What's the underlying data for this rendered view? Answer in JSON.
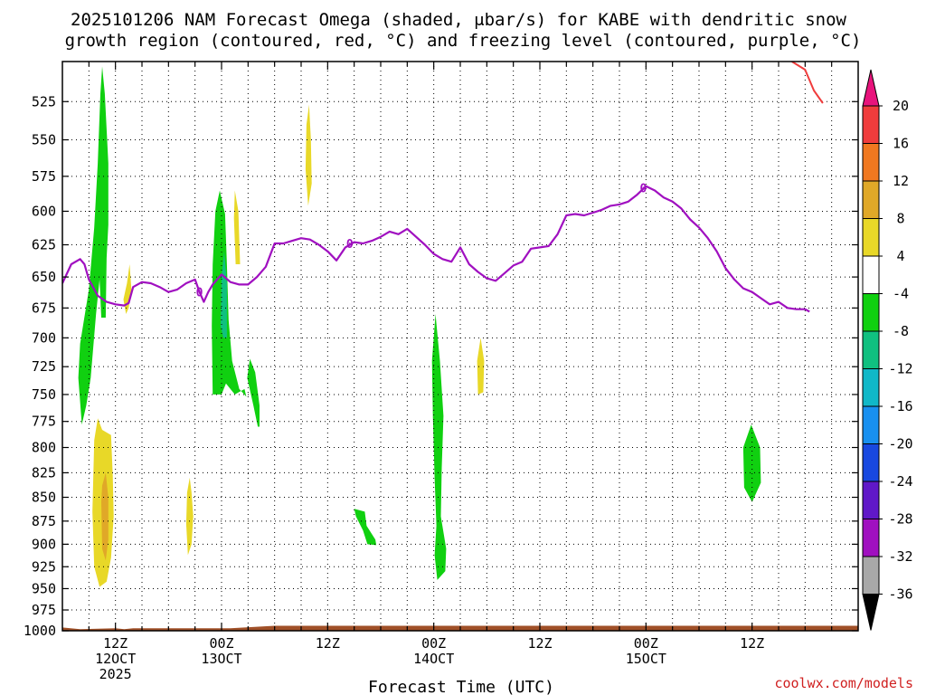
{
  "chart_data": {
    "type": "heatmap",
    "title_lines": [
      "2025101206 NAM Forecast Omega (shaded, μbar/s) for KABE with dendritic snow",
      "growth region (contoured, red, °C) and freezing level (contoured, purple, °C)"
    ],
    "xlabel": "Forecast Time (UTC)",
    "credit": "coolwx.com/models",
    "x_range_hours": [
      -6,
      84
    ],
    "y_range_hpa": [
      1000,
      500
    ],
    "y_scale": "log",
    "grid": true,
    "y_ticks": [
      525,
      550,
      575,
      600,
      625,
      650,
      675,
      700,
      725,
      750,
      775,
      800,
      825,
      850,
      875,
      900,
      925,
      950,
      975,
      1000
    ],
    "x_ticks": [
      {
        "hour": 0,
        "lines": [
          "12Z",
          "12OCT",
          "2025"
        ]
      },
      {
        "hour": 12,
        "lines": [
          "00Z",
          "13OCT"
        ]
      },
      {
        "hour": 24,
        "lines": [
          "12Z"
        ]
      },
      {
        "hour": 36,
        "lines": [
          "00Z",
          "14OCT"
        ]
      },
      {
        "hour": 48,
        "lines": [
          "12Z"
        ]
      },
      {
        "hour": 60,
        "lines": [
          "00Z",
          "15OCT"
        ]
      },
      {
        "hour": 72,
        "lines": [
          "12Z"
        ]
      }
    ],
    "colorbar": {
      "labels": [
        "20",
        "16",
        "12",
        "8",
        "4",
        "-4",
        "-8",
        "-12",
        "-16",
        "-20",
        "-24",
        "-28",
        "-32",
        "-36"
      ],
      "colors": [
        "#e8137c",
        "#f03c3c",
        "#f07820",
        "#e0a828",
        "#e8d828",
        "#ffffff",
        "#10d010",
        "#10c080",
        "#10b8c8",
        "#1890f0",
        "#1848e0",
        "#6018c8",
        "#a010c0",
        "#a8a8a8",
        "#000000"
      ]
    },
    "freezing_level": {
      "color": "#a010c0",
      "label": "0",
      "points": [
        [
          -6,
          655
        ],
        [
          -5,
          640
        ],
        [
          -4,
          636
        ],
        [
          -3.5,
          640
        ],
        [
          -3,
          652
        ],
        [
          -2,
          665
        ],
        [
          -1,
          670
        ],
        [
          0,
          672
        ],
        [
          1,
          673
        ],
        [
          1.5,
          671
        ],
        [
          2,
          658
        ],
        [
          3,
          654
        ],
        [
          4,
          655
        ],
        [
          5,
          658
        ],
        [
          6,
          662
        ],
        [
          7,
          660
        ],
        [
          8,
          655
        ],
        [
          9,
          652
        ],
        [
          9.5,
          662
        ],
        [
          10,
          670
        ],
        [
          10.5,
          662
        ],
        [
          11,
          656
        ],
        [
          12,
          648
        ],
        [
          12.5,
          651
        ],
        [
          13,
          654
        ],
        [
          14,
          656
        ],
        [
          15,
          656
        ],
        [
          16,
          650
        ],
        [
          17,
          642
        ],
        [
          18,
          624
        ],
        [
          19,
          624
        ],
        [
          20,
          622
        ],
        [
          21,
          620
        ],
        [
          22,
          621
        ],
        [
          23,
          625
        ],
        [
          24,
          630
        ],
        [
          25,
          637
        ],
        [
          26,
          627
        ],
        [
          27,
          623
        ],
        [
          28,
          624
        ],
        [
          29,
          622
        ],
        [
          30,
          619
        ],
        [
          31,
          615
        ],
        [
          32,
          617
        ],
        [
          33,
          613
        ],
        [
          34,
          619
        ],
        [
          35,
          625
        ],
        [
          36,
          632
        ],
        [
          37,
          636
        ],
        [
          38,
          638
        ],
        [
          39,
          627
        ],
        [
          40,
          640
        ],
        [
          41,
          646
        ],
        [
          42,
          651
        ],
        [
          43,
          653
        ],
        [
          44,
          647
        ],
        [
          45,
          641
        ],
        [
          46,
          638
        ],
        [
          47,
          628
        ],
        [
          48,
          627
        ],
        [
          49,
          626
        ],
        [
          50,
          617
        ],
        [
          51,
          603
        ],
        [
          52,
          602
        ],
        [
          53,
          603
        ],
        [
          54,
          601
        ],
        [
          55,
          599
        ],
        [
          56,
          596
        ],
        [
          57,
          595
        ],
        [
          58,
          593
        ],
        [
          59,
          588
        ],
        [
          60,
          582
        ],
        [
          61,
          585
        ],
        [
          62,
          590
        ],
        [
          63,
          593
        ],
        [
          64,
          598
        ],
        [
          65,
          606
        ],
        [
          66,
          612
        ],
        [
          67,
          620
        ],
        [
          68,
          630
        ],
        [
          69,
          643
        ],
        [
          70,
          652
        ],
        [
          71,
          659
        ],
        [
          72,
          662
        ],
        [
          73,
          667
        ],
        [
          74,
          672
        ],
        [
          75,
          670
        ],
        [
          76,
          675
        ],
        [
          77,
          676
        ],
        [
          78,
          676
        ],
        [
          78.5,
          678
        ]
      ]
    },
    "dgz_contour": {
      "color": "#f03c3c",
      "points": [
        [
          76.5,
          500
        ],
        [
          78,
          505
        ],
        [
          79,
          518
        ],
        [
          80,
          526
        ]
      ]
    },
    "omega_regions": [
      {
        "value_range": "-8 to -4",
        "color": "#10d010",
        "points": [
          [
            -3.8,
            778
          ],
          [
            -4.2,
            735
          ],
          [
            -4,
            705
          ],
          [
            -3,
            660
          ],
          [
            -2.4,
            612
          ],
          [
            -2,
            566
          ],
          [
            -1.7,
            520
          ],
          [
            -1.5,
            503
          ],
          [
            -1.2,
            520
          ],
          [
            -0.8,
            566
          ],
          [
            -0.8,
            610
          ],
          [
            -1,
            635
          ],
          [
            -1.1,
            683
          ],
          [
            -1.6,
            683
          ],
          [
            -1.8,
            652
          ],
          [
            -2.2,
            680
          ],
          [
            -2.8,
            735
          ],
          [
            -3.3,
            760
          ]
        ]
      },
      {
        "value_range": "4 to 8",
        "color": "#e8d828",
        "points": [
          [
            -2.4,
            793
          ],
          [
            -2.6,
            865
          ],
          [
            -2.4,
            925
          ],
          [
            -1.8,
            948
          ],
          [
            -1,
            942
          ],
          [
            -0.5,
            915
          ],
          [
            -0.2,
            870
          ],
          [
            -0.3,
            828
          ],
          [
            -0.5,
            788
          ],
          [
            -1.5,
            783
          ],
          [
            -2,
            772
          ]
        ]
      },
      {
        "value_range": "8 to 12",
        "color": "#e0a828",
        "points": [
          [
            -1.6,
            855
          ],
          [
            -1.5,
            905
          ],
          [
            -1.1,
            918
          ],
          [
            -0.8,
            895
          ],
          [
            -0.8,
            850
          ],
          [
            -1.1,
            825
          ],
          [
            -1.5,
            838
          ]
        ]
      },
      {
        "value_range": "4 to 8",
        "color": "#e8d828",
        "points": [
          [
            1.2,
            680
          ],
          [
            1.5,
            675
          ],
          [
            1.8,
            660
          ],
          [
            1.6,
            640
          ],
          [
            1.3,
            655
          ],
          [
            0.9,
            668
          ],
          [
            1,
            672
          ]
        ]
      },
      {
        "value_range": "4 to 8",
        "color": "#e8d828",
        "points": [
          [
            8,
            878
          ],
          [
            8.2,
            912
          ],
          [
            8.6,
            900
          ],
          [
            8.8,
            870
          ],
          [
            8.6,
            845
          ],
          [
            8.4,
            830
          ],
          [
            8.1,
            845
          ]
        ]
      },
      {
        "value_range": "-8 to -4",
        "color": "#10d010",
        "points": [
          [
            11,
            750
          ],
          [
            10.9,
            690
          ],
          [
            11,
            640
          ],
          [
            11.3,
            600
          ],
          [
            11.8,
            585
          ],
          [
            12.4,
            602
          ],
          [
            12.6,
            640
          ],
          [
            12.8,
            685
          ],
          [
            13.2,
            720
          ],
          [
            14,
            745
          ],
          [
            14.8,
            752
          ],
          [
            14.6,
            745
          ],
          [
            13.5,
            750
          ],
          [
            12.5,
            740
          ],
          [
            12,
            750
          ]
        ]
      },
      {
        "value_range": "-12 to -8",
        "color": "#10c080",
        "points": [
          [
            11.9,
            690
          ],
          [
            12,
            650
          ],
          [
            12.3,
            630
          ],
          [
            12.6,
            655
          ],
          [
            12.6,
            700
          ],
          [
            12.2,
            700
          ]
        ]
      },
      {
        "value_range": "4 to 8",
        "color": "#e8d828",
        "points": [
          [
            13.6,
            640
          ],
          [
            13.4,
            605
          ],
          [
            13.5,
            585
          ],
          [
            13.9,
            600
          ],
          [
            14.1,
            640
          ]
        ]
      },
      {
        "value_range": "-8 to -4",
        "color": "#10d010",
        "points": [
          [
            16.1,
            780
          ],
          [
            15.6,
            760
          ],
          [
            14.9,
            735
          ],
          [
            15.2,
            718
          ],
          [
            15.8,
            730
          ],
          [
            16.3,
            760
          ],
          [
            16.3,
            780
          ]
        ]
      },
      {
        "value_range": "4 to 8",
        "color": "#e8d828",
        "points": [
          [
            21.8,
            596
          ],
          [
            21.5,
            570
          ],
          [
            21.6,
            540
          ],
          [
            21.9,
            527
          ],
          [
            22.1,
            550
          ],
          [
            22.2,
            580
          ]
        ]
      },
      {
        "value_range": "-8 to -4",
        "color": "#10d010",
        "points": [
          [
            27,
            862
          ],
          [
            28.2,
            865
          ],
          [
            28.4,
            880
          ],
          [
            29.4,
            895
          ],
          [
            29.5,
            901
          ],
          [
            28.5,
            900
          ],
          [
            28,
            885
          ],
          [
            27.2,
            870
          ]
        ]
      },
      {
        "value_range": "-8 to -4",
        "color": "#10d010",
        "points": [
          [
            36.2,
            680
          ],
          [
            35.8,
            720
          ],
          [
            35.9,
            770
          ],
          [
            36.1,
            830
          ],
          [
            36.3,
            880
          ],
          [
            36.1,
            912
          ],
          [
            36.4,
            940
          ],
          [
            37.3,
            930
          ],
          [
            37.4,
            905
          ],
          [
            36.8,
            870
          ],
          [
            36.9,
            820
          ],
          [
            37.1,
            770
          ],
          [
            36.7,
            720
          ]
        ]
      },
      {
        "value_range": "4 to 8",
        "color": "#e8d828",
        "points": [
          [
            41.3,
            700
          ],
          [
            40.9,
            720
          ],
          [
            41,
            750
          ],
          [
            41.6,
            748
          ],
          [
            41.7,
            720
          ]
        ]
      },
      {
        "value_range": "-8 to -4",
        "color": "#10d010",
        "points": [
          [
            71.9,
            778
          ],
          [
            71,
            800
          ],
          [
            71.1,
            840
          ],
          [
            72,
            855
          ],
          [
            73,
            835
          ],
          [
            72.9,
            800
          ]
        ]
      }
    ],
    "terrain": {
      "color": "#a05028",
      "surface_points": [
        [
          -6,
          996
        ],
        [
          -4,
          998
        ],
        [
          0,
          997
        ],
        [
          1,
          998
        ],
        [
          2,
          997
        ],
        [
          13,
          997
        ],
        [
          18,
          994
        ],
        [
          84,
          994
        ]
      ]
    }
  }
}
